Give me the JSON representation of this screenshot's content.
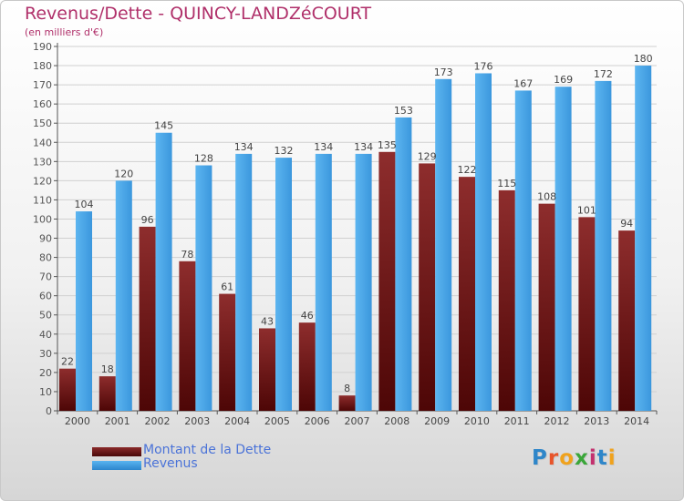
{
  "chart_data": {
    "type": "bar",
    "title": "Revenus/Dette - QUINCY-LANDZéCOURT",
    "subtitle": "(en milliers d'€)",
    "categories": [
      "2000",
      "2001",
      "2002",
      "2003",
      "2004",
      "2005",
      "2006",
      "2007",
      "2008",
      "2009",
      "2010",
      "2011",
      "2012",
      "2013",
      "2014"
    ],
    "series": [
      {
        "name": "Montant de la Dette",
        "color": "#7a1c1c",
        "values": [
          22,
          18,
          96,
          78,
          61,
          43,
          46,
          8,
          135,
          129,
          122,
          115,
          108,
          101,
          94
        ]
      },
      {
        "name": "Revenus",
        "color": "#4ba6e6",
        "values": [
          104,
          120,
          145,
          128,
          134,
          132,
          134,
          134,
          153,
          173,
          176,
          167,
          169,
          172,
          180
        ]
      }
    ],
    "ylim": [
      0,
      190
    ],
    "ytick_step": 10,
    "grid": true,
    "legend": "bottom-left"
  },
  "branding": {
    "logo_text": "Proxiti"
  }
}
